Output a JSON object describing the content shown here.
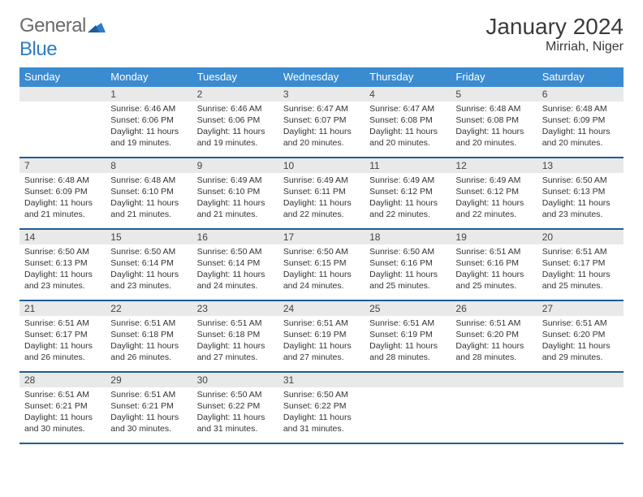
{
  "brand": {
    "part1": "General",
    "part2": "Blue"
  },
  "title": "January 2024",
  "location": "Mirriah, Niger",
  "header_bg": "#3b8bd0",
  "week_border": "#1f5c99",
  "daynum_bg": "#e9e9e9",
  "dow": [
    "Sunday",
    "Monday",
    "Tuesday",
    "Wednesday",
    "Thursday",
    "Friday",
    "Saturday"
  ],
  "weeks": [
    [
      null,
      {
        "n": "1",
        "sr": "Sunrise: 6:46 AM",
        "ss": "Sunset: 6:06 PM",
        "d1": "Daylight: 11 hours",
        "d2": "and 19 minutes."
      },
      {
        "n": "2",
        "sr": "Sunrise: 6:46 AM",
        "ss": "Sunset: 6:06 PM",
        "d1": "Daylight: 11 hours",
        "d2": "and 19 minutes."
      },
      {
        "n": "3",
        "sr": "Sunrise: 6:47 AM",
        "ss": "Sunset: 6:07 PM",
        "d1": "Daylight: 11 hours",
        "d2": "and 20 minutes."
      },
      {
        "n": "4",
        "sr": "Sunrise: 6:47 AM",
        "ss": "Sunset: 6:08 PM",
        "d1": "Daylight: 11 hours",
        "d2": "and 20 minutes."
      },
      {
        "n": "5",
        "sr": "Sunrise: 6:48 AM",
        "ss": "Sunset: 6:08 PM",
        "d1": "Daylight: 11 hours",
        "d2": "and 20 minutes."
      },
      {
        "n": "6",
        "sr": "Sunrise: 6:48 AM",
        "ss": "Sunset: 6:09 PM",
        "d1": "Daylight: 11 hours",
        "d2": "and 20 minutes."
      }
    ],
    [
      {
        "n": "7",
        "sr": "Sunrise: 6:48 AM",
        "ss": "Sunset: 6:09 PM",
        "d1": "Daylight: 11 hours",
        "d2": "and 21 minutes."
      },
      {
        "n": "8",
        "sr": "Sunrise: 6:48 AM",
        "ss": "Sunset: 6:10 PM",
        "d1": "Daylight: 11 hours",
        "d2": "and 21 minutes."
      },
      {
        "n": "9",
        "sr": "Sunrise: 6:49 AM",
        "ss": "Sunset: 6:10 PM",
        "d1": "Daylight: 11 hours",
        "d2": "and 21 minutes."
      },
      {
        "n": "10",
        "sr": "Sunrise: 6:49 AM",
        "ss": "Sunset: 6:11 PM",
        "d1": "Daylight: 11 hours",
        "d2": "and 22 minutes."
      },
      {
        "n": "11",
        "sr": "Sunrise: 6:49 AM",
        "ss": "Sunset: 6:12 PM",
        "d1": "Daylight: 11 hours",
        "d2": "and 22 minutes."
      },
      {
        "n": "12",
        "sr": "Sunrise: 6:49 AM",
        "ss": "Sunset: 6:12 PM",
        "d1": "Daylight: 11 hours",
        "d2": "and 22 minutes."
      },
      {
        "n": "13",
        "sr": "Sunrise: 6:50 AM",
        "ss": "Sunset: 6:13 PM",
        "d1": "Daylight: 11 hours",
        "d2": "and 23 minutes."
      }
    ],
    [
      {
        "n": "14",
        "sr": "Sunrise: 6:50 AM",
        "ss": "Sunset: 6:13 PM",
        "d1": "Daylight: 11 hours",
        "d2": "and 23 minutes."
      },
      {
        "n": "15",
        "sr": "Sunrise: 6:50 AM",
        "ss": "Sunset: 6:14 PM",
        "d1": "Daylight: 11 hours",
        "d2": "and 23 minutes."
      },
      {
        "n": "16",
        "sr": "Sunrise: 6:50 AM",
        "ss": "Sunset: 6:14 PM",
        "d1": "Daylight: 11 hours",
        "d2": "and 24 minutes."
      },
      {
        "n": "17",
        "sr": "Sunrise: 6:50 AM",
        "ss": "Sunset: 6:15 PM",
        "d1": "Daylight: 11 hours",
        "d2": "and 24 minutes."
      },
      {
        "n": "18",
        "sr": "Sunrise: 6:50 AM",
        "ss": "Sunset: 6:16 PM",
        "d1": "Daylight: 11 hours",
        "d2": "and 25 minutes."
      },
      {
        "n": "19",
        "sr": "Sunrise: 6:51 AM",
        "ss": "Sunset: 6:16 PM",
        "d1": "Daylight: 11 hours",
        "d2": "and 25 minutes."
      },
      {
        "n": "20",
        "sr": "Sunrise: 6:51 AM",
        "ss": "Sunset: 6:17 PM",
        "d1": "Daylight: 11 hours",
        "d2": "and 25 minutes."
      }
    ],
    [
      {
        "n": "21",
        "sr": "Sunrise: 6:51 AM",
        "ss": "Sunset: 6:17 PM",
        "d1": "Daylight: 11 hours",
        "d2": "and 26 minutes."
      },
      {
        "n": "22",
        "sr": "Sunrise: 6:51 AM",
        "ss": "Sunset: 6:18 PM",
        "d1": "Daylight: 11 hours",
        "d2": "and 26 minutes."
      },
      {
        "n": "23",
        "sr": "Sunrise: 6:51 AM",
        "ss": "Sunset: 6:18 PM",
        "d1": "Daylight: 11 hours",
        "d2": "and 27 minutes."
      },
      {
        "n": "24",
        "sr": "Sunrise: 6:51 AM",
        "ss": "Sunset: 6:19 PM",
        "d1": "Daylight: 11 hours",
        "d2": "and 27 minutes."
      },
      {
        "n": "25",
        "sr": "Sunrise: 6:51 AM",
        "ss": "Sunset: 6:19 PM",
        "d1": "Daylight: 11 hours",
        "d2": "and 28 minutes."
      },
      {
        "n": "26",
        "sr": "Sunrise: 6:51 AM",
        "ss": "Sunset: 6:20 PM",
        "d1": "Daylight: 11 hours",
        "d2": "and 28 minutes."
      },
      {
        "n": "27",
        "sr": "Sunrise: 6:51 AM",
        "ss": "Sunset: 6:20 PM",
        "d1": "Daylight: 11 hours",
        "d2": "and 29 minutes."
      }
    ],
    [
      {
        "n": "28",
        "sr": "Sunrise: 6:51 AM",
        "ss": "Sunset: 6:21 PM",
        "d1": "Daylight: 11 hours",
        "d2": "and 30 minutes."
      },
      {
        "n": "29",
        "sr": "Sunrise: 6:51 AM",
        "ss": "Sunset: 6:21 PM",
        "d1": "Daylight: 11 hours",
        "d2": "and 30 minutes."
      },
      {
        "n": "30",
        "sr": "Sunrise: 6:50 AM",
        "ss": "Sunset: 6:22 PM",
        "d1": "Daylight: 11 hours",
        "d2": "and 31 minutes."
      },
      {
        "n": "31",
        "sr": "Sunrise: 6:50 AM",
        "ss": "Sunset: 6:22 PM",
        "d1": "Daylight: 11 hours",
        "d2": "and 31 minutes."
      },
      null,
      null,
      null
    ]
  ]
}
